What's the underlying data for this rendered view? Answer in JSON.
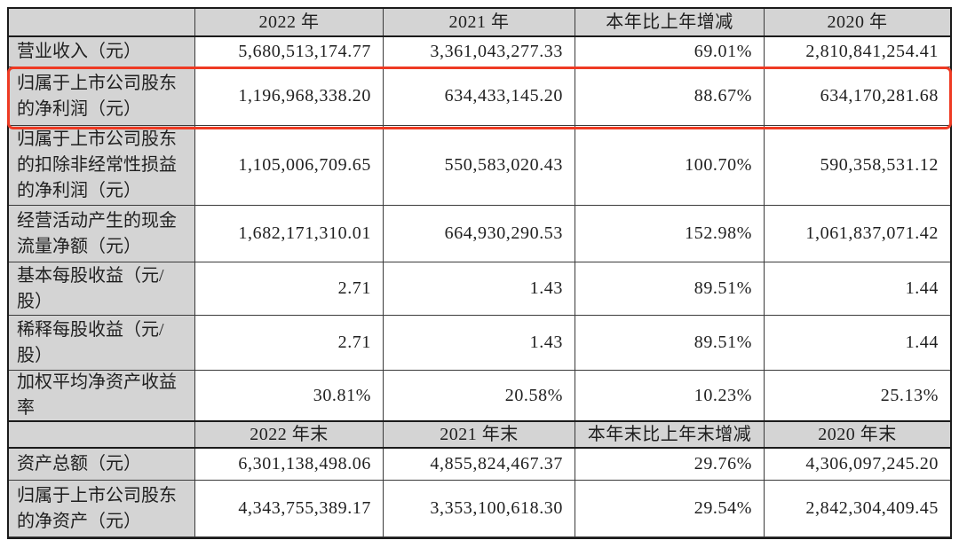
{
  "colors": {
    "highlight_border": "#ee3a23",
    "header_background": "#d4d4d4",
    "grid_line": "#3a3a3a"
  },
  "table": {
    "headers1": [
      "",
      "2022 年",
      "2021 年",
      "本年比上年增减",
      "2020 年"
    ],
    "rows1": [
      {
        "label": "营业收入（元）",
        "values": [
          "5,680,513,174.77",
          "3,361,043,277.33",
          "69.01%",
          "2,810,841,254.41"
        ]
      },
      {
        "label": "归属于上市公司股东的净利润（元）",
        "highlighted": true,
        "values": [
          "1,196,968,338.20",
          "634,433,145.20",
          "88.67%",
          "634,170,281.68"
        ]
      },
      {
        "label": "归属于上市公司股东的扣除非经常性损益的净利润（元）",
        "values": [
          "1,105,006,709.65",
          "550,583,020.43",
          "100.70%",
          "590,358,531.12"
        ]
      },
      {
        "label": "经营活动产生的现金流量净额（元）",
        "values": [
          "1,682,171,310.01",
          "664,930,290.53",
          "152.98%",
          "1,061,837,071.42"
        ]
      },
      {
        "label": "基本每股收益（元/股）",
        "values": [
          "2.71",
          "1.43",
          "89.51%",
          "1.44"
        ]
      },
      {
        "label": "稀释每股收益（元/股）",
        "values": [
          "2.71",
          "1.43",
          "89.51%",
          "1.44"
        ]
      },
      {
        "label": "加权平均净资产收益率",
        "values": [
          "30.81%",
          "20.58%",
          "10.23%",
          "25.13%"
        ]
      }
    ],
    "headers2": [
      "",
      "2022 年末",
      "2021 年末",
      "本年末比上年末增减",
      "2020 年末"
    ],
    "rows2": [
      {
        "label": "资产总额（元）",
        "values": [
          "6,301,138,498.06",
          "4,855,824,467.37",
          "29.76%",
          "4,306,097,245.20"
        ]
      },
      {
        "label": "归属于上市公司股东的净资产（元）",
        "values": [
          "4,343,755,389.17",
          "3,353,100,618.30",
          "29.54%",
          "2,842,304,409.45"
        ]
      }
    ]
  }
}
